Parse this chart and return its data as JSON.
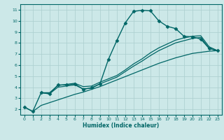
{
  "xlabel": "Humidex (Indice chaleur)",
  "bg_color": "#cce8e8",
  "grid_color": "#aacece",
  "line_color": "#006666",
  "xlim": [
    -0.5,
    23.5
  ],
  "ylim": [
    1.5,
    11.5
  ],
  "xticks": [
    0,
    1,
    2,
    3,
    4,
    5,
    6,
    7,
    8,
    9,
    10,
    11,
    12,
    13,
    14,
    15,
    16,
    17,
    18,
    19,
    20,
    21,
    22,
    23
  ],
  "yticks": [
    2,
    3,
    4,
    5,
    6,
    7,
    8,
    9,
    10,
    11
  ],
  "lines": [
    {
      "x": [
        0,
        1,
        2,
        3,
        4,
        5,
        6,
        7,
        8,
        9,
        10,
        11,
        12,
        13,
        14,
        15,
        16,
        17,
        18,
        19,
        20,
        21,
        22,
        23
      ],
      "y": [
        2.2,
        1.8,
        3.5,
        3.4,
        4.2,
        4.2,
        4.3,
        3.8,
        3.95,
        4.3,
        6.5,
        8.2,
        9.8,
        10.85,
        10.95,
        10.9,
        10.0,
        9.5,
        9.3,
        8.6,
        8.55,
        8.35,
        7.5,
        7.3
      ],
      "marker": "D",
      "marker_size": 2.5,
      "linewidth": 1.0,
      "zorder": 5
    },
    {
      "x": [
        2,
        3,
        4,
        5,
        6,
        7,
        8,
        9,
        10,
        11,
        12,
        13,
        14,
        15,
        16,
        17,
        18,
        19,
        20,
        21,
        22,
        23
      ],
      "y": [
        3.5,
        3.5,
        4.15,
        4.25,
        4.35,
        4.05,
        4.1,
        4.45,
        4.75,
        5.05,
        5.55,
        6.1,
        6.55,
        7.1,
        7.55,
        7.9,
        8.25,
        8.45,
        8.6,
        8.65,
        7.65,
        7.3
      ],
      "marker": null,
      "marker_size": 0,
      "linewidth": 0.9,
      "zorder": 3
    },
    {
      "x": [
        2,
        3,
        4,
        5,
        6,
        7,
        8,
        9,
        10,
        11,
        12,
        13,
        14,
        15,
        16,
        17,
        18,
        19,
        20,
        21,
        22,
        23
      ],
      "y": [
        3.5,
        3.4,
        4.0,
        4.1,
        4.2,
        3.85,
        3.9,
        4.3,
        4.6,
        4.9,
        5.4,
        5.9,
        6.35,
        6.85,
        7.3,
        7.65,
        8.0,
        8.2,
        8.4,
        8.5,
        7.5,
        7.3
      ],
      "marker": null,
      "marker_size": 0,
      "linewidth": 0.9,
      "zorder": 3
    },
    {
      "x": [
        0,
        1,
        2,
        3,
        4,
        5,
        6,
        7,
        8,
        9,
        10,
        11,
        12,
        13,
        14,
        15,
        16,
        17,
        18,
        19,
        20,
        21,
        22,
        23
      ],
      "y": [
        2.2,
        1.8,
        2.35,
        2.6,
        2.85,
        3.1,
        3.35,
        3.55,
        3.8,
        4.05,
        4.35,
        4.65,
        4.95,
        5.25,
        5.55,
        5.85,
        6.15,
        6.4,
        6.65,
        6.85,
        7.05,
        7.15,
        7.25,
        7.3
      ],
      "marker": null,
      "marker_size": 0,
      "linewidth": 0.9,
      "zorder": 3
    }
  ]
}
